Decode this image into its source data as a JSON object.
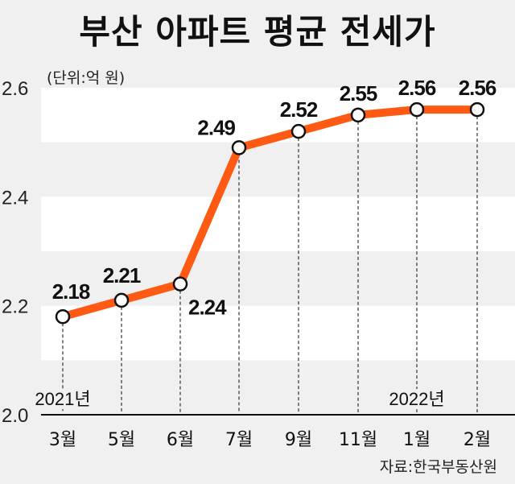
{
  "title": "부산 아파트 평균 전세가",
  "unit_label": "(단위:억 원)",
  "source": "자료:한국부동산원",
  "colors": {
    "line": "#ff5a14",
    "band": "#ffffff",
    "background": "#f0f0f0"
  },
  "chart_data": {
    "type": "line",
    "title": "부산 아파트 평균 전세가",
    "ylabel": "억 원",
    "categories": [
      "3월",
      "5월",
      "6월",
      "7월",
      "9월",
      "11월",
      "1월",
      "2월"
    ],
    "values": [
      2.18,
      2.21,
      2.24,
      2.49,
      2.52,
      2.55,
      2.56,
      2.56
    ],
    "value_labels": [
      "2.18",
      "2.21",
      "2.24",
      "2.49",
      "2.52",
      "2.55",
      "2.56",
      "2.56"
    ],
    "ylim": [
      2.0,
      2.6
    ],
    "yticks": [
      "2.0",
      "2.2",
      "2.4",
      "2.6"
    ],
    "year_labels": [
      {
        "text": "2021년",
        "category_index": 0
      },
      {
        "text": "2022년",
        "category_index": 6
      }
    ]
  }
}
